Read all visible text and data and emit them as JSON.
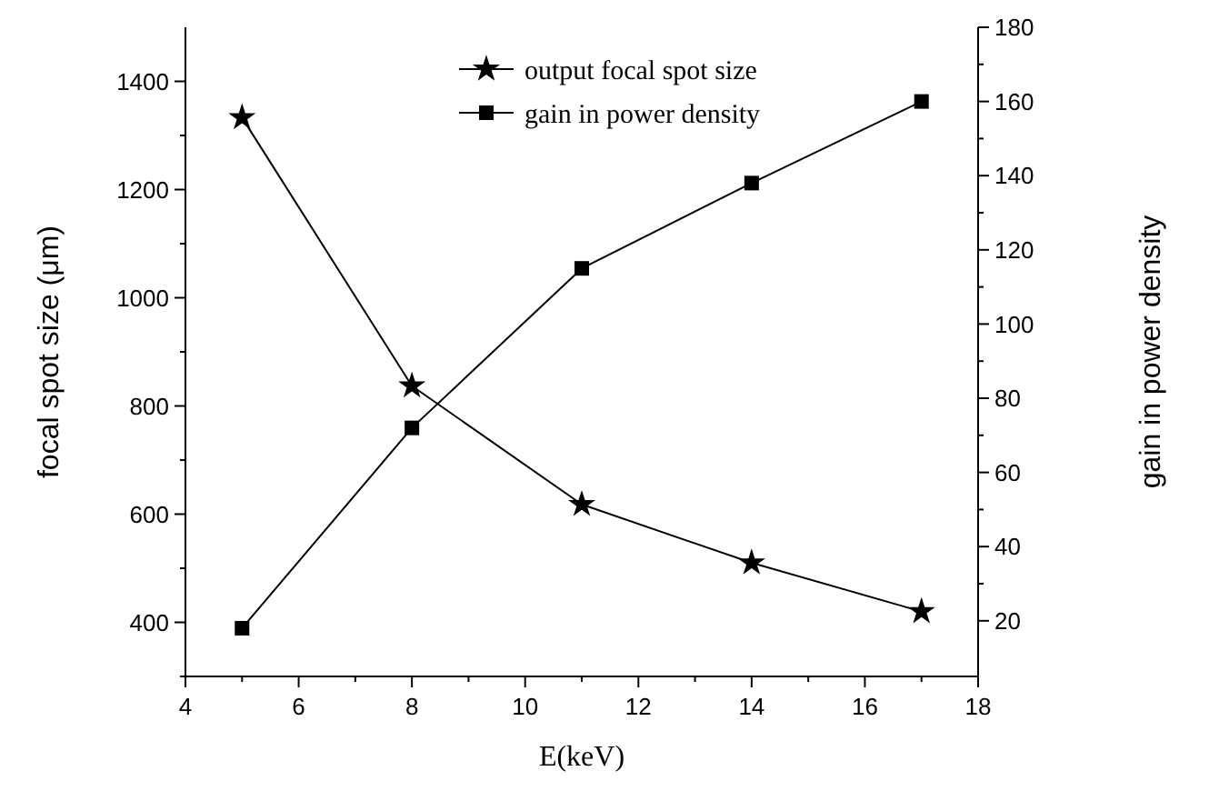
{
  "chart_data": {
    "type": "line",
    "xlabel": "E(keV)",
    "ylabel": "focal spot size (μm)",
    "y2label": "gain in power density",
    "x": [
      5,
      8,
      11,
      14,
      17
    ],
    "series": [
      {
        "name": "output focal spot size",
        "color": "#000000",
        "values": [
          1333,
          837,
          618,
          510,
          420
        ],
        "marker": "star"
      },
      {
        "name": "gain in power density",
        "color": "#000000",
        "values": [
          18,
          72,
          115,
          138,
          160
        ],
        "marker": "square",
        "axis": "y2"
      }
    ],
    "xlim": [
      4,
      18
    ],
    "xticks": [
      4,
      6,
      8,
      10,
      12,
      14,
      16,
      18
    ],
    "ylim": [
      300,
      1500
    ],
    "yticks": [
      400,
      600,
      800,
      1000,
      1200,
      1400
    ],
    "y2lim": [
      5,
      180
    ],
    "y2ticks": [
      20,
      40,
      60,
      80,
      100,
      120,
      140,
      160,
      180
    ],
    "legend": "top",
    "grid": false,
    "line_style": "solid"
  }
}
